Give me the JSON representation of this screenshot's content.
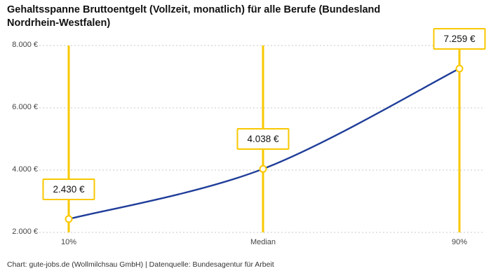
{
  "title": "Gehaltsspanne Bruttoentgelt (Vollzeit, monatlich) für alle Berufe (Bundesland Nordrhein-Westfalen)",
  "footer": "Chart: gute-jobs.de (Wollmilchsau GmbH) | Datenquelle: Bundesagentur für Arbeit",
  "chart_data": {
    "type": "line",
    "title": "Gehaltsspanne Bruttoentgelt (Vollzeit, monatlich) für alle Berufe (Bundesland Nordrhein-Westfalen)",
    "categories": [
      "10%",
      "Median",
      "90%"
    ],
    "values": [
      2430,
      4038,
      7259
    ],
    "value_labels": [
      "2.430 €",
      "4.038 €",
      "7.259 €"
    ],
    "y_ticks": [
      2000,
      4000,
      6000,
      8000
    ],
    "y_tick_labels": [
      "2.000 €",
      "4.000 €",
      "6.000 €",
      "8.000 €"
    ],
    "ylim": [
      2000,
      8000
    ],
    "grid": "dashed-horizontal",
    "legend": "none",
    "colors": {
      "line": "#1f3d99",
      "accent": "#f9c801",
      "grid": "#c9c9c9"
    },
    "source": "Datenquelle: Bundesagentur für Arbeit"
  }
}
